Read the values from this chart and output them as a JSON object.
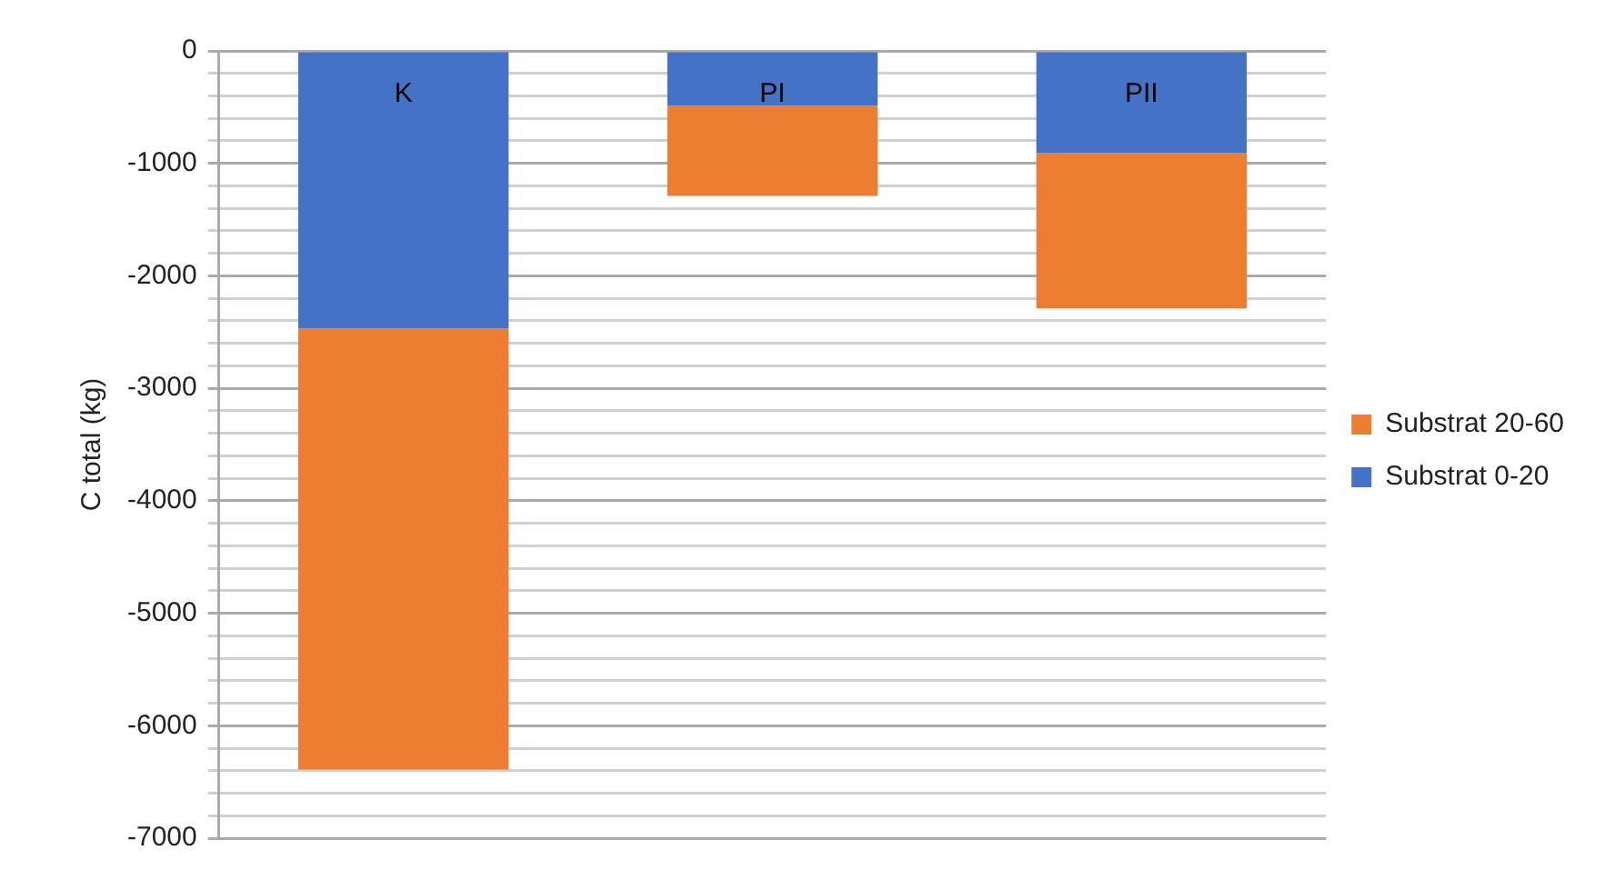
{
  "chart_data": {
    "type": "bar",
    "stacked": true,
    "ylabel": "C total (kg)",
    "categories": [
      "K",
      "PI",
      "PII"
    ],
    "series": [
      {
        "name": "Substrat 0-20",
        "color": "#4472c4",
        "values": [
          -2470,
          -490,
          -910
        ]
      },
      {
        "name": "Substrat 20-60",
        "color": "#ed7d31",
        "values": [
          -3920,
          -800,
          -1380
        ]
      }
    ],
    "ylim": [
      -7000,
      0
    ],
    "yticks": [
      0,
      {
        "value": -200,
        "label": null
      },
      {
        "value": -400,
        "label": null
      },
      {
        "value": -600,
        "label": null
      },
      {
        "value": -800,
        "label": null
      },
      -1000,
      {
        "value": -1200,
        "label": null
      },
      {
        "value": -1400,
        "label": null
      },
      {
        "value": -1600,
        "label": null
      },
      {
        "value": -1800,
        "label": null
      },
      -2000,
      {
        "value": -2200,
        "label": null
      },
      {
        "value": -2400,
        "label": null
      },
      {
        "value": -2600,
        "label": null
      },
      {
        "value": -2800,
        "label": null
      },
      -3000,
      {
        "value": -3200,
        "label": null
      },
      {
        "value": -3400,
        "label": null
      },
      {
        "value": -3600,
        "label": null
      },
      {
        "value": -3800,
        "label": null
      },
      -4000,
      {
        "value": -4200,
        "label": null
      },
      {
        "value": -4400,
        "label": null
      },
      {
        "value": -4600,
        "label": null
      },
      {
        "value": -4800,
        "label": null
      },
      -5000,
      {
        "value": -5200,
        "label": null
      },
      {
        "value": -5400,
        "label": null
      },
      {
        "value": -5600,
        "label": null
      },
      {
        "value": -5800,
        "label": null
      },
      -6000,
      {
        "value": -6200,
        "label": null
      },
      {
        "value": -6400,
        "label": null
      },
      {
        "value": -6600,
        "label": null
      },
      {
        "value": -6800,
        "label": null
      },
      -7000
    ],
    "grid": "y",
    "legend": "right"
  }
}
